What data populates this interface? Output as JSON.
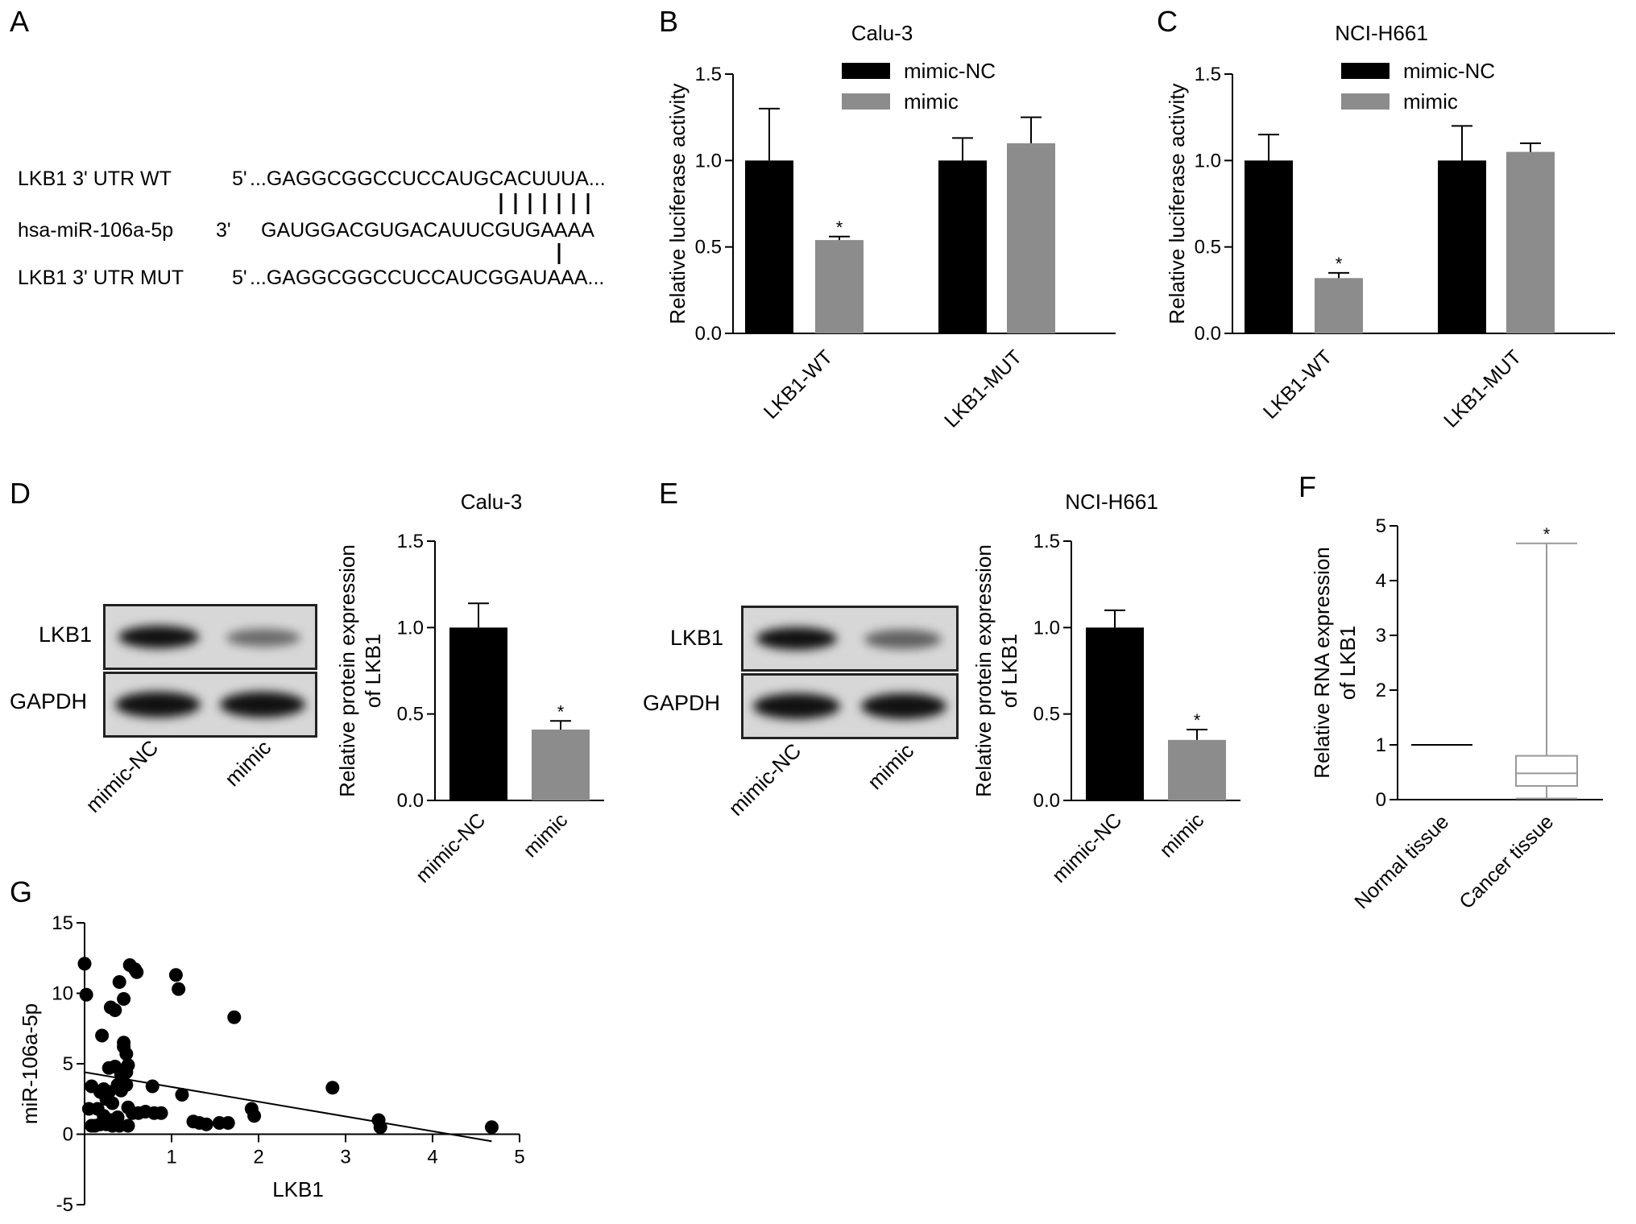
{
  "panels": [
    "A",
    "B",
    "C",
    "D",
    "E",
    "F",
    "G"
  ],
  "seq": {
    "wt_label": "LKB1 3' UTR WT",
    "wt_end": "5'",
    "wt_seq": "...GAGGCGGCCUCCAUGCACUUUA...",
    "mir_label": "hsa-miR-106a-5p",
    "mir_end": "3'",
    "mir_seq": "GAUGGACGUGACAUUCGUGAAAA",
    "mut_label": "LKB1 3' UTR MUT",
    "mut_end": "5'",
    "mut_seq": "...GAGGCGGCCUCCAUCGGAUAAA..."
  },
  "blots": {
    "band_labels": [
      "LKB1",
      "GAPDH"
    ],
    "lane_labels": [
      "mimic-NC",
      "mimic"
    ],
    "lkb1_intensity_D": [
      1.0,
      0.42
    ],
    "lkb1_intensity_E": [
      1.0,
      0.36
    ],
    "colors": {
      "band": "#111111",
      "background": "#d7d7d7"
    }
  },
  "colors": {
    "black_bar": "#000000",
    "gray_bar": "#8c8c8c",
    "box": "#aaaaaa"
  },
  "chart_data": [
    {
      "panel": "B",
      "type": "bar",
      "title": "Calu-3",
      "ylabel": "Relative luciferase activity",
      "xlabel": "",
      "categories": [
        "LKB1-WT",
        "LKB1-MUT"
      ],
      "series": [
        {
          "name": "mimic-NC",
          "color": "#000000",
          "values": [
            1.0,
            1.0
          ],
          "errors": [
            0.3,
            0.13
          ]
        },
        {
          "name": "mimic",
          "color": "#8c8c8c",
          "values": [
            0.54,
            1.1
          ],
          "errors": [
            0.02,
            0.15
          ]
        }
      ],
      "significance": [
        "*",
        ""
      ],
      "ylim": [
        0,
        1.5
      ],
      "yticks": [
        0.0,
        0.5,
        1.0,
        1.5
      ],
      "legend": "top",
      "grid": false
    },
    {
      "panel": "C",
      "type": "bar",
      "title": "NCI-H661",
      "ylabel": "Relative luciferase activity",
      "xlabel": "",
      "categories": [
        "LKB1-WT",
        "LKB1-MUT"
      ],
      "series": [
        {
          "name": "mimic-NC",
          "color": "#000000",
          "values": [
            1.0,
            1.0
          ],
          "errors": [
            0.15,
            0.2
          ]
        },
        {
          "name": "mimic",
          "color": "#8c8c8c",
          "values": [
            0.32,
            1.05
          ],
          "errors": [
            0.03,
            0.05
          ]
        }
      ],
      "significance": [
        "*",
        ""
      ],
      "ylim": [
        0,
        1.5
      ],
      "yticks": [
        0.0,
        0.5,
        1.0,
        1.5
      ],
      "legend": "top",
      "grid": false
    },
    {
      "panel": "D",
      "type": "bar",
      "title": "Calu-3",
      "ylabel": "Relative protein expression of LKB1",
      "xlabel": "",
      "categories": [
        "mimic-NC",
        "mimic"
      ],
      "values": [
        1.0,
        0.41
      ],
      "errors": [
        0.14,
        0.05
      ],
      "colors": [
        "#000000",
        "#8c8c8c"
      ],
      "significance": [
        "",
        "*"
      ],
      "ylim": [
        0,
        1.5
      ],
      "yticks": [
        0.0,
        0.5,
        1.0,
        1.5
      ],
      "grid": false
    },
    {
      "panel": "E",
      "type": "bar",
      "title": "NCI-H661",
      "ylabel": "Relative protein expression of LKB1",
      "xlabel": "",
      "categories": [
        "mimic-NC",
        "mimic"
      ],
      "values": [
        1.0,
        0.35
      ],
      "errors": [
        0.1,
        0.06
      ],
      "colors": [
        "#000000",
        "#8c8c8c"
      ],
      "significance": [
        "",
        "*"
      ],
      "ylim": [
        0,
        1.5
      ],
      "yticks": [
        0.0,
        0.5,
        1.0,
        1.5
      ],
      "grid": false
    },
    {
      "panel": "F",
      "type": "box",
      "title": "",
      "ylabel": "Relative RNA expression of LKB1",
      "xlabel": "",
      "categories": [
        "Normal tissue",
        "Cancer tissue"
      ],
      "boxes": [
        {
          "min": 1.0,
          "q1": 1.0,
          "median": 1.0,
          "q3": 1.0,
          "max": 1.0
        },
        {
          "min": 0.02,
          "q1": 0.25,
          "median": 0.48,
          "q3": 0.8,
          "max": 4.68
        }
      ],
      "significance": [
        "",
        "*"
      ],
      "ylim": [
        0,
        5
      ],
      "yticks": [
        0,
        1,
        2,
        3,
        4,
        5
      ],
      "grid": false
    },
    {
      "panel": "G",
      "type": "scatter",
      "title": "",
      "xlabel": "LKB1",
      "ylabel": "miR-106a-5p",
      "xlim": [
        0,
        5
      ],
      "ylim": [
        -5,
        15
      ],
      "xticks": [
        1,
        2,
        3,
        4,
        5
      ],
      "yticks": [
        -5,
        0,
        5,
        10,
        15
      ],
      "fit_line": {
        "x": [
          0.0,
          4.68
        ],
        "y": [
          4.4,
          -0.5
        ]
      },
      "points": [
        [
          0.0,
          12.1
        ],
        [
          0.02,
          9.9
        ],
        [
          0.05,
          1.8
        ],
        [
          0.08,
          0.6
        ],
        [
          0.08,
          3.4
        ],
        [
          0.12,
          0.6
        ],
        [
          0.15,
          1.8
        ],
        [
          0.18,
          3.0
        ],
        [
          0.18,
          0.7
        ],
        [
          0.2,
          7.0
        ],
        [
          0.22,
          3.2
        ],
        [
          0.22,
          1.3
        ],
        [
          0.25,
          0.7
        ],
        [
          0.25,
          2.5
        ],
        [
          0.28,
          4.7
        ],
        [
          0.28,
          3.0
        ],
        [
          0.3,
          9.0
        ],
        [
          0.3,
          1.0
        ],
        [
          0.32,
          0.6
        ],
        [
          0.32,
          2.2
        ],
        [
          0.35,
          4.8
        ],
        [
          0.35,
          8.8
        ],
        [
          0.38,
          3.5
        ],
        [
          0.38,
          1.2
        ],
        [
          0.4,
          10.8
        ],
        [
          0.4,
          0.6
        ],
        [
          0.42,
          3.1
        ],
        [
          0.42,
          4.2
        ],
        [
          0.45,
          9.6
        ],
        [
          0.45,
          6.5
        ],
        [
          0.45,
          6.2
        ],
        [
          0.48,
          5.7
        ],
        [
          0.48,
          4.4
        ],
        [
          0.48,
          3.5
        ],
        [
          0.5,
          4.9
        ],
        [
          0.5,
          1.9
        ],
        [
          0.5,
          0.6
        ],
        [
          0.52,
          12.0
        ],
        [
          0.55,
          1.5
        ],
        [
          0.58,
          11.7
        ],
        [
          0.6,
          11.5
        ],
        [
          0.62,
          1.5
        ],
        [
          0.7,
          1.6
        ],
        [
          0.78,
          3.4
        ],
        [
          0.8,
          1.5
        ],
        [
          0.88,
          1.5
        ],
        [
          1.05,
          11.3
        ],
        [
          1.08,
          10.3
        ],
        [
          1.12,
          2.8
        ],
        [
          1.25,
          0.9
        ],
        [
          1.32,
          0.8
        ],
        [
          1.4,
          0.7
        ],
        [
          1.55,
          0.8
        ],
        [
          1.65,
          0.8
        ],
        [
          1.72,
          8.3
        ],
        [
          1.92,
          1.8
        ],
        [
          1.95,
          1.3
        ],
        [
          2.85,
          3.3
        ],
        [
          3.38,
          1.0
        ],
        [
          3.4,
          0.5
        ],
        [
          4.68,
          0.5
        ]
      ]
    }
  ]
}
